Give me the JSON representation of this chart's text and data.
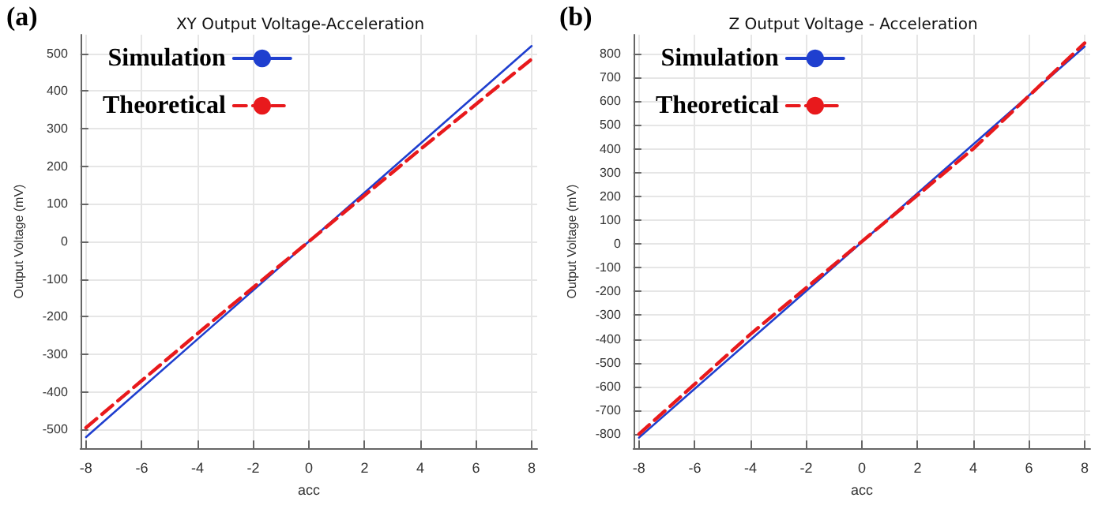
{
  "chart_data": [
    {
      "type": "line",
      "title": "XY Output Voltage-Acceleration",
      "xlabel": "acc",
      "ylabel": "Output Voltage (mV)",
      "annotations": [
        "(a)"
      ],
      "series": [
        {
          "name": "Simulation",
          "color": "#1f3fcf",
          "x": [
            -8,
            8
          ],
          "values": [
            -520,
            520
          ],
          "line_style": "solid"
        },
        {
          "name": "Theoretical",
          "color": "#e8191c",
          "x": [
            -8,
            -4,
            0,
            4,
            8
          ],
          "values": [
            -495,
            -245,
            0,
            245,
            485
          ],
          "line_style": "dashed"
        }
      ],
      "xlim": [
        -8.2,
        8.2
      ],
      "xticks": [
        -8,
        -6,
        -4,
        -2,
        0,
        2,
        4,
        6,
        8
      ],
      "ylim": [
        -550,
        550
      ],
      "yticks": [
        -500,
        -400,
        -300,
        -200,
        -100,
        0,
        100,
        200,
        300,
        400,
        500
      ],
      "grid": true,
      "legend": "top left",
      "marker": "none"
    },
    {
      "type": "line",
      "title": "Z Output Voltage - Acceleration",
      "xlabel": "acc",
      "ylabel": "Output Voltage (mV)",
      "annotations": [
        "(b)"
      ],
      "series": [
        {
          "name": "Simulation",
          "color": "#1f3fcf",
          "x": [
            -8,
            8
          ],
          "values": [
            -815,
            830
          ],
          "line_style": "solid"
        },
        {
          "name": "Theoretical",
          "color": "#e8191c",
          "x": [
            -8,
            -4,
            0,
            4,
            8
          ],
          "values": [
            -800,
            -380,
            10,
            400,
            845
          ],
          "line_style": "dashed"
        }
      ],
      "xlim": [
        -8.2,
        8.2
      ],
      "xticks": [
        -8,
        -6,
        -4,
        -2,
        0,
        2,
        4,
        6,
        8
      ],
      "ylim": [
        -860,
        880
      ],
      "yticks": [
        -800,
        -700,
        -600,
        -500,
        -400,
        -300,
        -200,
        -100,
        0,
        100,
        200,
        300,
        400,
        500,
        600,
        700,
        800
      ],
      "grid": true,
      "legend": "top left",
      "marker": "none"
    }
  ]
}
